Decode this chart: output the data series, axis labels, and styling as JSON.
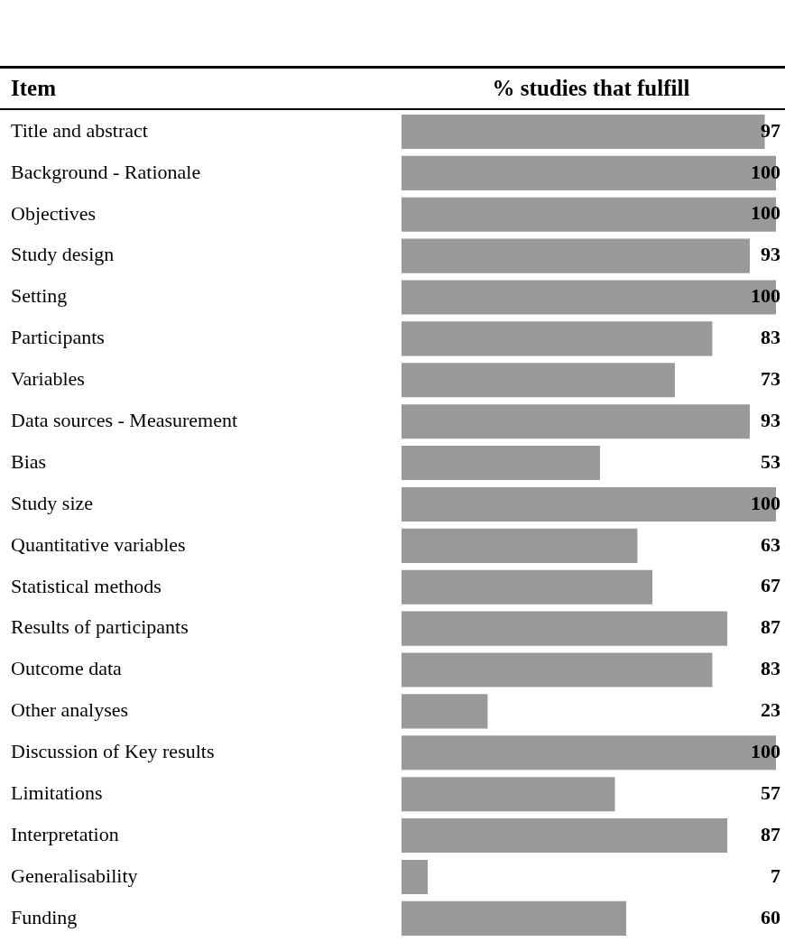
{
  "chart_data": {
    "type": "bar",
    "orientation": "horizontal",
    "ylabel": "Item",
    "xlabel": "% studies that fulfill",
    "categories": [
      "Title and abstract",
      "Background - Rationale",
      "Objectives",
      "Study design",
      "Setting",
      "Participants",
      "Variables",
      "Data sources - Measurement",
      "Bias",
      "Study size",
      "Quantitative variables",
      "Statistical methods",
      "Results of participants",
      "Outcome data",
      "Other analyses",
      "Discussion of Key results",
      "Limitations",
      "Interpretation",
      "Generalisability",
      "Funding"
    ],
    "values": [
      97,
      100,
      100,
      93,
      100,
      83,
      73,
      93,
      53,
      100,
      63,
      67,
      87,
      83,
      23,
      100,
      57,
      87,
      7,
      60
    ],
    "color": "#999999",
    "xlim": [
      0,
      100
    ],
    "data_labels": true,
    "tick_labels": "y",
    "grid": false,
    "legend": false
  }
}
